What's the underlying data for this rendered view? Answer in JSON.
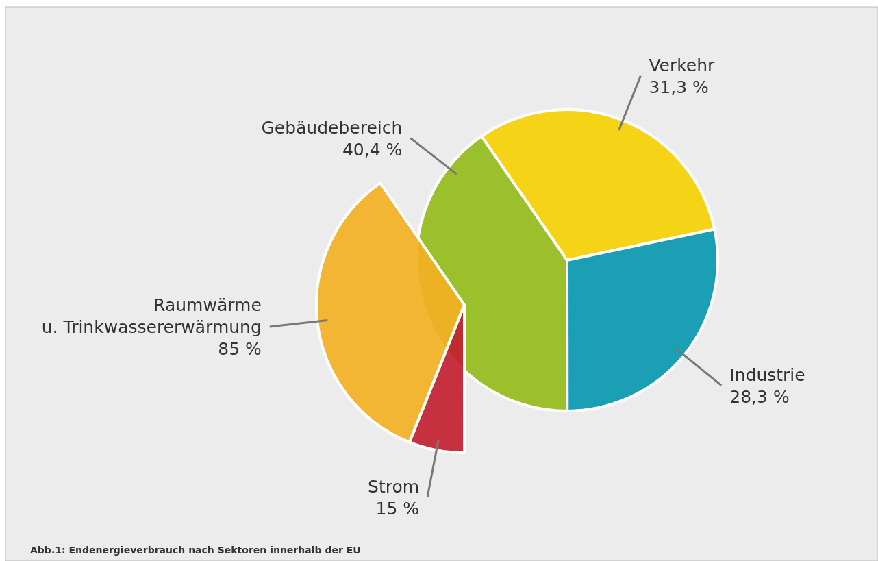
{
  "chart_data": [
    {
      "type": "pie",
      "categories": [
        "Verkehr",
        "Industrie",
        "Gebäudebereich"
      ],
      "values": [
        31.3,
        28.3,
        40.4
      ],
      "value_labels": [
        "31,3 %",
        "28,3 %",
        "40,4 %"
      ],
      "colors": [
        "#f5d417",
        "#1a9fb4",
        "#9cc02c"
      ],
      "annotations": [
        "Abb.1: Endenergieverbrauch nach Sektoren innerhalb der EU"
      ]
    },
    {
      "type": "pie",
      "categories": [
        "Strom",
        "Raumwärme\nu. Trinkwassererwärmung"
      ],
      "values": [
        15,
        85
      ],
      "value_labels": [
        "15 %",
        "85 %"
      ],
      "colors": [
        "#c3202f",
        "#f3b124"
      ]
    }
  ]
}
